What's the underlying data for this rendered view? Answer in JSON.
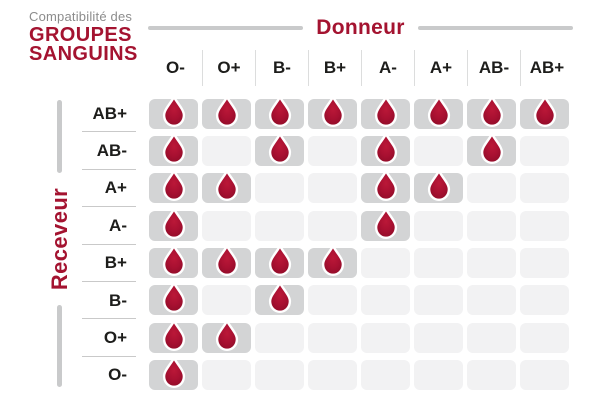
{
  "title": {
    "prefix": "Compatibilité des",
    "line1": "GROUPES",
    "line2": "SANGUINS"
  },
  "axis": {
    "donor_label": "Donneur",
    "receiver_label": "Receveur"
  },
  "icons": {
    "compatible_marker": "blood-drop-icon"
  },
  "colors": {
    "accent_red": "#a41330",
    "subtitle_gray": "#8c8c8c",
    "header_text": "#1d1d1b",
    "cell_filled": "#d3d4d5",
    "cell_empty": "#f2f2f3",
    "line_gray": "#c9cacb",
    "drop_light": "#bb1838",
    "drop_mid": "#a81031",
    "drop_dark": "#8f0c28"
  },
  "chart_data": {
    "type": "heatmap",
    "title": "Compatibilité des GROUPES SANGUINS",
    "x_axis_label": "Donneur",
    "y_axis_label": "Receveur",
    "columns": [
      "O-",
      "O+",
      "B-",
      "B+",
      "A-",
      "A+",
      "AB-",
      "AB+"
    ],
    "rows": [
      "AB+",
      "AB-",
      "A+",
      "A-",
      "B+",
      "B-",
      "O+",
      "O-"
    ],
    "matrix": [
      [
        1,
        1,
        1,
        1,
        1,
        1,
        1,
        1
      ],
      [
        1,
        0,
        1,
        0,
        1,
        0,
        1,
        0
      ],
      [
        1,
        1,
        0,
        0,
        1,
        1,
        0,
        0
      ],
      [
        1,
        0,
        0,
        0,
        1,
        0,
        0,
        0
      ],
      [
        1,
        1,
        1,
        1,
        0,
        0,
        0,
        0
      ],
      [
        1,
        0,
        1,
        0,
        0,
        0,
        0,
        0
      ],
      [
        1,
        1,
        0,
        0,
        0,
        0,
        0,
        0
      ],
      [
        1,
        0,
        0,
        0,
        0,
        0,
        0,
        0
      ]
    ]
  }
}
